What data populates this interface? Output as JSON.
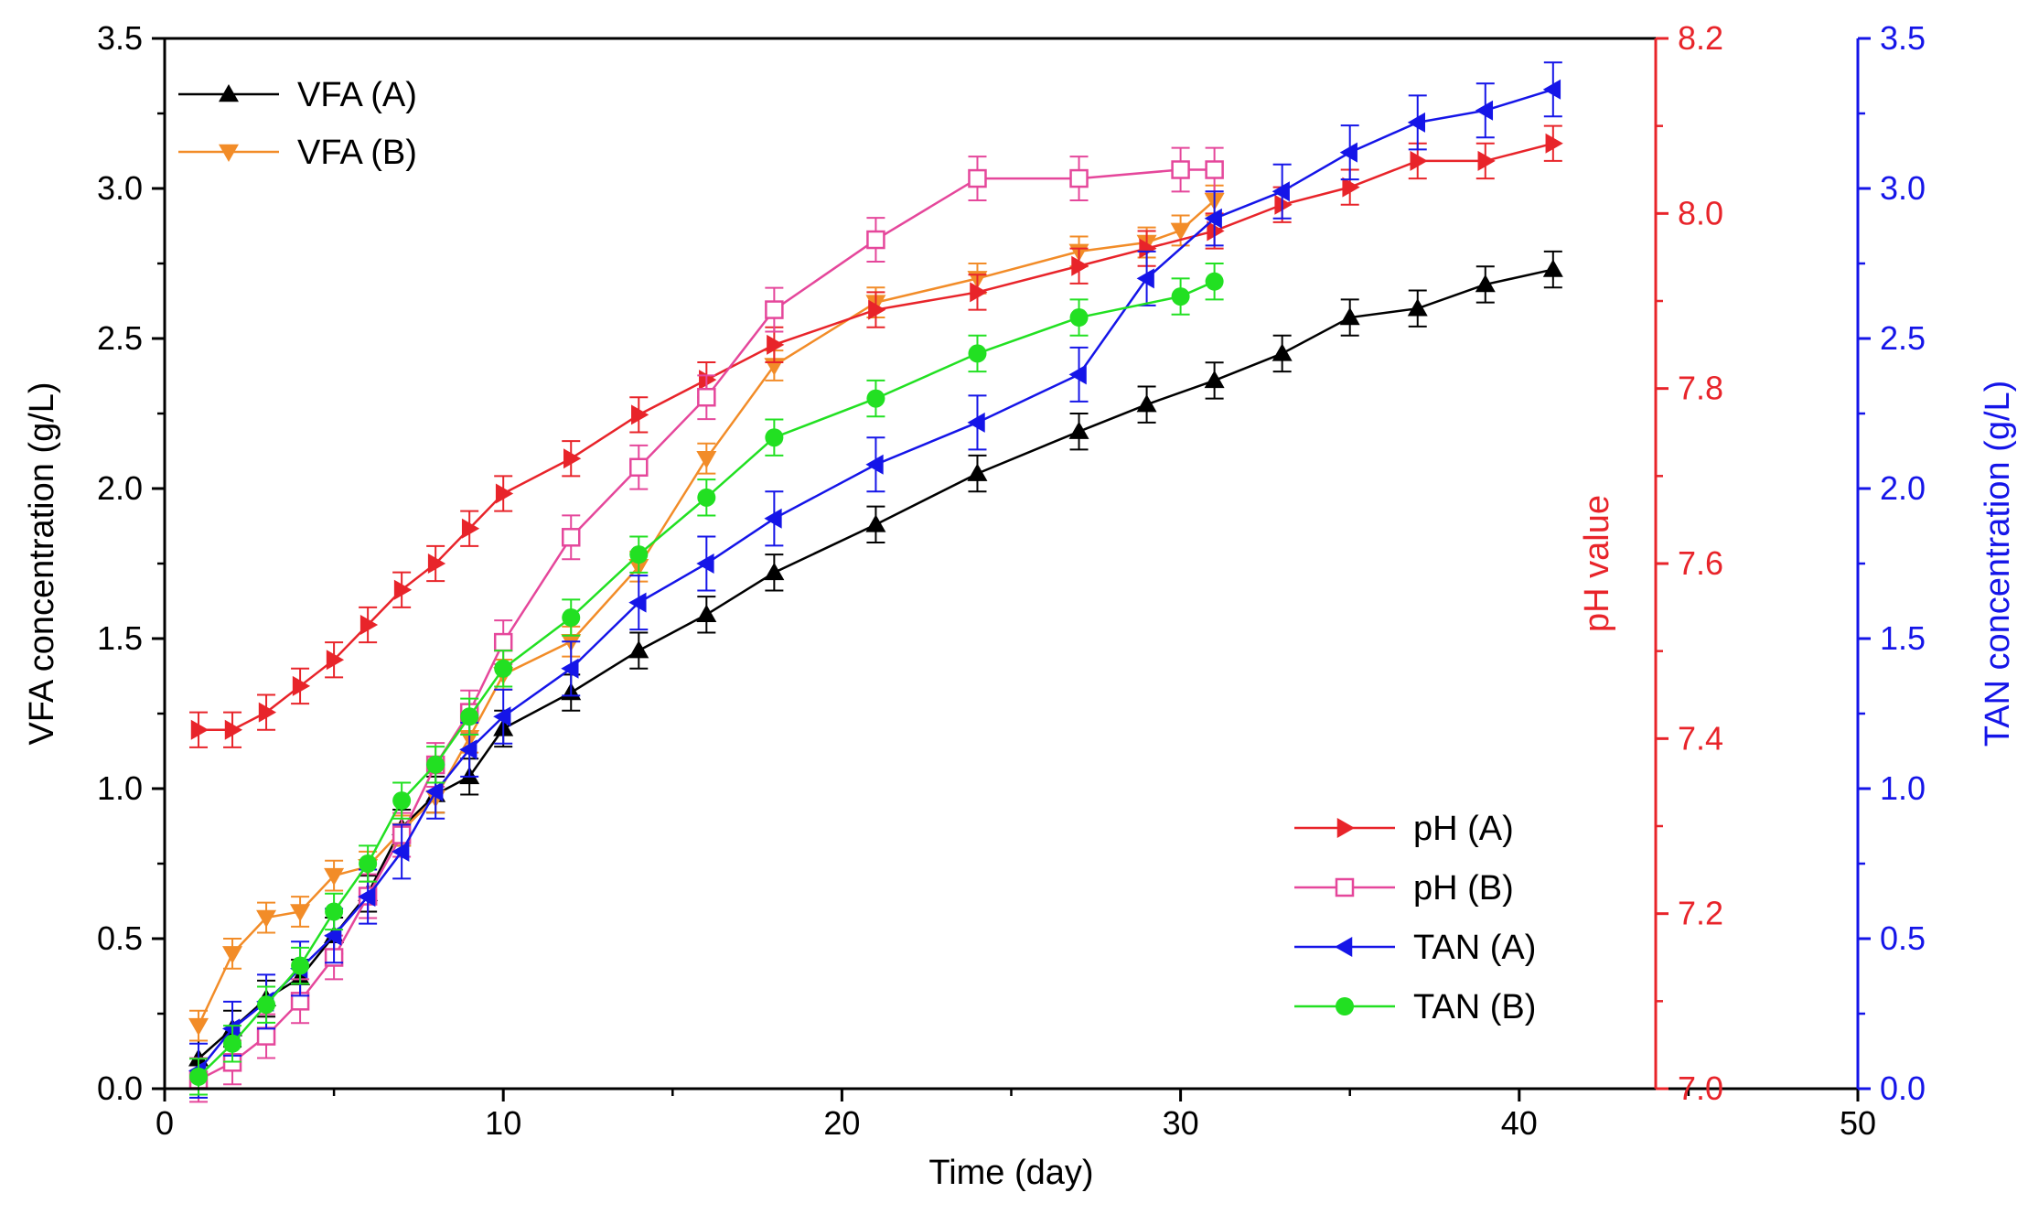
{
  "colors": {
    "vfa_a": "#000000",
    "vfa_b": "#F28C28",
    "ph_a": "#E8242A",
    "ph_b": "#E5479B",
    "tan_a": "#1515E8",
    "tan_b": "#22E022",
    "axis_left": "#000000",
    "axis_ph": "#E8242A",
    "axis_tan": "#1515E8"
  },
  "chart_data": {
    "type": "line",
    "xlabel": "Time (day)",
    "ylabel_left": "VFA concentration (g/L)",
    "ylabel_ph": "pH value",
    "ylabel_tan": "TAN concentration (g/L)",
    "xlim": [
      0,
      50
    ],
    "xticks": [
      "0",
      "10",
      "20",
      "30",
      "40",
      "50"
    ],
    "ylim_left": [
      0,
      3.5
    ],
    "yticks_left": [
      "0.0",
      "0.5",
      "1.0",
      "1.5",
      "2.0",
      "2.5",
      "3.0",
      "3.5"
    ],
    "ylim_ph": [
      7.0,
      8.2
    ],
    "yticks_ph": [
      "7.0",
      "7.2",
      "7.4",
      "7.6",
      "7.8",
      "8.0",
      "8.2"
    ],
    "ylim_tan": [
      0,
      3.5
    ],
    "yticks_tan": [
      "0.0",
      "0.5",
      "1.0",
      "1.5",
      "2.0",
      "2.5",
      "3.0",
      "3.5"
    ],
    "series": [
      {
        "key": "vfa_a",
        "name": "VFA (A)",
        "marker": "triangle-up",
        "axis": "left",
        "x": [
          1,
          2,
          3,
          4,
          5,
          6,
          7,
          8,
          9,
          10,
          12,
          14,
          16,
          18,
          21,
          24,
          27,
          29,
          31,
          33,
          35,
          37,
          39,
          41
        ],
        "y": [
          0.1,
          0.2,
          0.3,
          0.37,
          0.51,
          0.65,
          0.87,
          0.98,
          1.04,
          1.2,
          1.32,
          1.46,
          1.58,
          1.72,
          1.88,
          2.05,
          2.19,
          2.28,
          2.36,
          2.45,
          2.57,
          2.6,
          2.68,
          2.73
        ],
        "err": 0.06
      },
      {
        "key": "vfa_b",
        "name": "VFA (B)",
        "marker": "triangle-down",
        "axis": "left",
        "x": [
          1,
          2,
          3,
          4,
          5,
          6,
          7,
          8,
          9,
          10,
          12,
          14,
          16,
          18,
          21,
          24,
          27,
          29,
          30,
          31
        ],
        "y": [
          0.21,
          0.45,
          0.57,
          0.59,
          0.71,
          0.74,
          0.86,
          0.97,
          1.17,
          1.38,
          1.49,
          1.74,
          2.1,
          2.41,
          2.62,
          2.7,
          2.79,
          2.82,
          2.86,
          2.96
        ],
        "err": 0.05
      },
      {
        "key": "ph_a",
        "name": "pH (A)",
        "marker": "triangle-right",
        "axis": "ph",
        "x": [
          1,
          2,
          3,
          4,
          5,
          6,
          7,
          8,
          9,
          10,
          12,
          14,
          16,
          18,
          21,
          24,
          27,
          29,
          31,
          33,
          35,
          37,
          39,
          41
        ],
        "y": [
          7.41,
          7.41,
          7.43,
          7.46,
          7.49,
          7.53,
          7.57,
          7.6,
          7.64,
          7.68,
          7.72,
          7.77,
          7.81,
          7.85,
          7.89,
          7.91,
          7.94,
          7.96,
          7.98,
          8.01,
          8.03,
          8.06,
          8.06,
          8.08
        ],
        "err": 0.02
      },
      {
        "key": "ph_b",
        "name": "pH (B)",
        "marker": "square-open",
        "axis": "ph",
        "x": [
          1,
          2,
          3,
          4,
          5,
          6,
          7,
          8,
          9,
          10,
          12,
          14,
          16,
          18,
          21,
          24,
          27,
          30,
          31
        ],
        "y": [
          7.01,
          7.03,
          7.06,
          7.1,
          7.15,
          7.22,
          7.29,
          7.37,
          7.43,
          7.51,
          7.63,
          7.71,
          7.79,
          7.89,
          7.97,
          8.04,
          8.04,
          8.05,
          8.05
        ],
        "err": 0.025
      },
      {
        "key": "tan_a",
        "name": "TAN (A)",
        "marker": "triangle-left",
        "axis": "tan",
        "x": [
          1,
          2,
          3,
          4,
          5,
          6,
          7,
          8,
          9,
          10,
          12,
          14,
          16,
          18,
          21,
          24,
          27,
          29,
          31,
          33,
          35,
          37,
          39,
          41
        ],
        "y": [
          0.06,
          0.2,
          0.29,
          0.4,
          0.51,
          0.64,
          0.79,
          0.99,
          1.13,
          1.24,
          1.4,
          1.62,
          1.75,
          1.9,
          2.08,
          2.22,
          2.38,
          2.7,
          2.9,
          2.99,
          3.12,
          3.22,
          3.26,
          3.33
        ],
        "err": 0.09
      },
      {
        "key": "tan_b",
        "name": "TAN (B)",
        "marker": "circle",
        "axis": "tan",
        "x": [
          1,
          2,
          3,
          4,
          5,
          6,
          7,
          8,
          9,
          10,
          12,
          14,
          16,
          18,
          21,
          24,
          27,
          30,
          31
        ],
        "y": [
          0.04,
          0.15,
          0.28,
          0.41,
          0.59,
          0.75,
          0.96,
          1.08,
          1.24,
          1.4,
          1.57,
          1.78,
          1.97,
          2.17,
          2.3,
          2.45,
          2.57,
          2.64,
          2.69
        ],
        "err": 0.06
      }
    ],
    "legends": [
      {
        "position": "top-left",
        "entries": [
          "VFA (A)",
          "VFA (B)"
        ]
      },
      {
        "position": "bottom-right",
        "entries": [
          "pH (A)",
          "pH (B)",
          "TAN (A)",
          "TAN (B)"
        ]
      }
    ]
  }
}
